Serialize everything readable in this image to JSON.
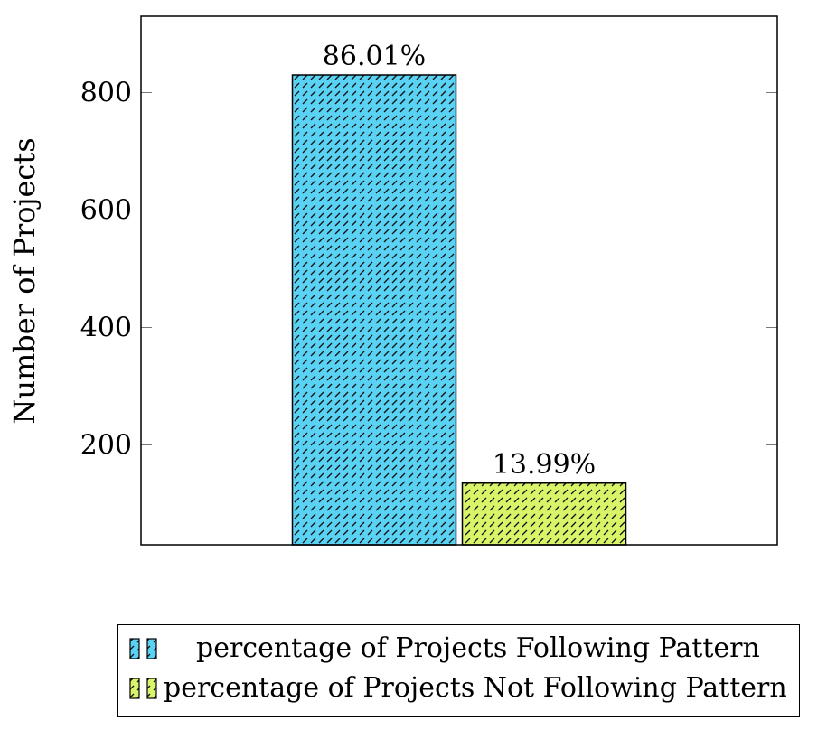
{
  "chart_data": {
    "type": "bar",
    "title": "",
    "xlabel": "",
    "ylabel": "Number of Projects",
    "ylim": [
      30,
      930
    ],
    "yticks": [
      200,
      400,
      600,
      800
    ],
    "grid": false,
    "legend_position": "bottom",
    "series": [
      {
        "name": "percentage of Projects Following Pattern",
        "value": 830,
        "label": "86.01%",
        "color": "#5ad2f4",
        "pattern": "north-east-dashes"
      },
      {
        "name": "percentage of Projects Not Following Pattern",
        "value": 135,
        "label": "13.99%",
        "color": "#d8f56a",
        "pattern": "north-east-dashes"
      }
    ]
  }
}
